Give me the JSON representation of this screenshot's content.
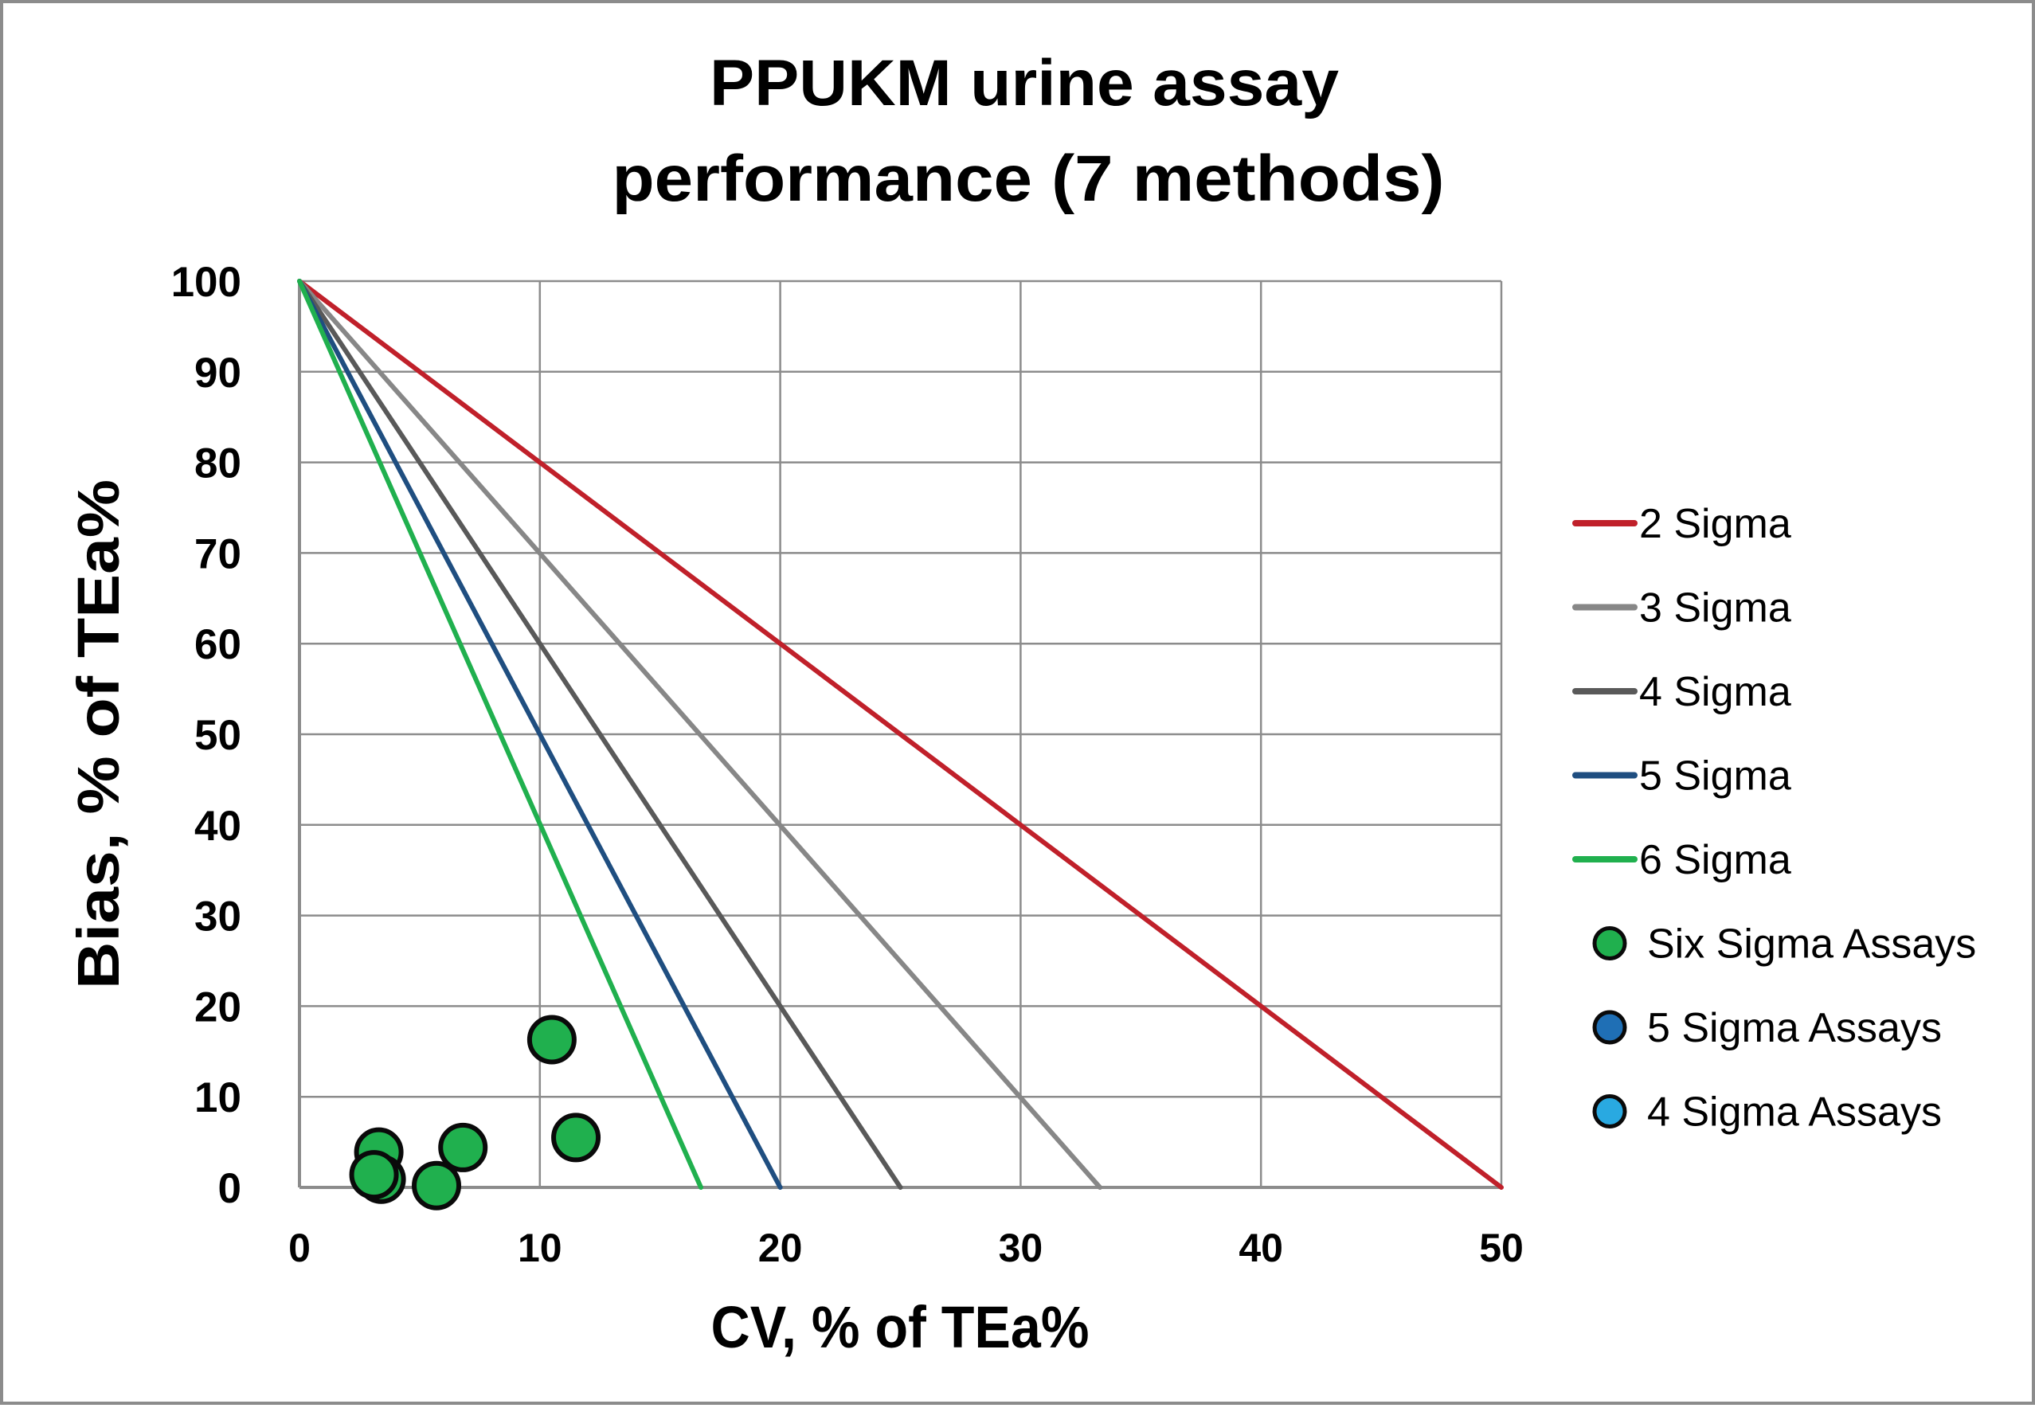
{
  "chart_data": {
    "type": "scatter",
    "title": "PPUKM urine assay performance (7 methods)",
    "title_lines": [
      "PPUKM urine assay",
      "performance (7 methods)"
    ],
    "xlabel": "CV, % of TEa%",
    "ylabel": "Bias, % of TEa%",
    "xlim": [
      0,
      50
    ],
    "ylim": [
      0,
      100
    ],
    "x_ticks": [
      0,
      10,
      20,
      30,
      40,
      50
    ],
    "y_ticks": [
      0,
      10,
      20,
      30,
      40,
      50,
      60,
      70,
      80,
      90,
      100
    ],
    "grid": true,
    "legend_position": "right",
    "sigma_lines": [
      {
        "name": "2 Sigma",
        "color": "#c0202a",
        "x": [
          0,
          50
        ],
        "y": [
          100,
          0
        ]
      },
      {
        "name": "3 Sigma",
        "color": "#878787",
        "x": [
          0,
          33.3
        ],
        "y": [
          100,
          0
        ]
      },
      {
        "name": "4 Sigma",
        "color": "#595959",
        "x": [
          0,
          25
        ],
        "y": [
          100,
          0
        ]
      },
      {
        "name": "5 Sigma",
        "color": "#1f4e80",
        "x": [
          0,
          20
        ],
        "y": [
          100,
          0
        ]
      },
      {
        "name": "6 Sigma",
        "color": "#20b04e",
        "x": [
          0,
          16.7
        ],
        "y": [
          100,
          0
        ]
      }
    ],
    "series": [
      {
        "name": "Six Sigma Assays",
        "color": "#20b04e",
        "points": [
          {
            "x": 3.3,
            "y": 3.9
          },
          {
            "x": 3.4,
            "y": 0.9
          },
          {
            "x": 3.1,
            "y": 1.4
          },
          {
            "x": 6.8,
            "y": 4.4
          },
          {
            "x": 5.7,
            "y": 0.2
          },
          {
            "x": 10.5,
            "y": 16.3
          },
          {
            "x": 11.5,
            "y": 5.5
          }
        ]
      },
      {
        "name": "5 Sigma Assays",
        "color": "#1f6fb5",
        "points": []
      },
      {
        "name": "4 Sigma Assays",
        "color": "#29a9e1",
        "points": []
      }
    ]
  },
  "legend": {
    "lines": [
      {
        "label": "2 Sigma",
        "color": "#c0202a"
      },
      {
        "label": "3 Sigma",
        "color": "#878787"
      },
      {
        "label": "4 Sigma",
        "color": "#595959"
      },
      {
        "label": "5 Sigma",
        "color": "#1f4e80"
      },
      {
        "label": "6 Sigma",
        "color": "#20b04e"
      }
    ],
    "markers": [
      {
        "label": "Six Sigma Assays",
        "color": "#20b04e"
      },
      {
        "label": "5 Sigma Assays",
        "color": "#1f6fb5"
      },
      {
        "label": "4 Sigma Assays",
        "color": "#29a9e1"
      }
    ]
  },
  "style": {
    "grid_color": "#8c8c8c",
    "marker_edge_color": "#0a0a0a"
  }
}
